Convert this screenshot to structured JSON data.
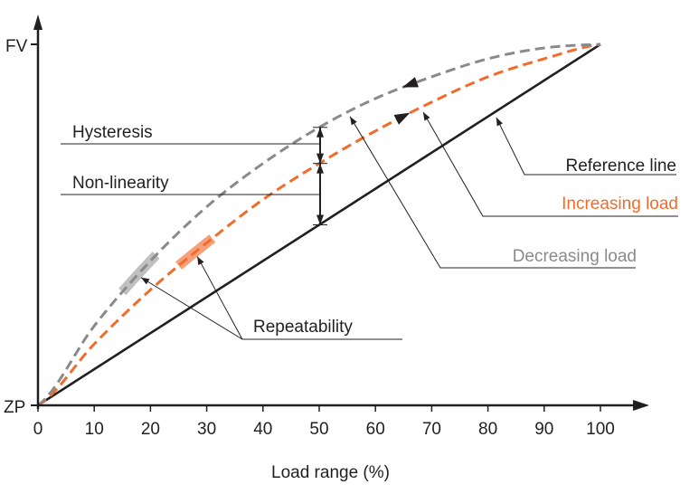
{
  "chart_data": {
    "type": "line",
    "title": "",
    "xlabel": "Load range (%)",
    "ylabel": "",
    "xlim": [
      0,
      100
    ],
    "ylim": [
      0,
      100
    ],
    "x_ticks": [
      0,
      10,
      20,
      30,
      40,
      50,
      60,
      70,
      80,
      90,
      100
    ],
    "y_tick_labels": [
      {
        "value": 0,
        "label": "ZP"
      },
      {
        "value": 100,
        "label": "FV"
      }
    ],
    "grid": false,
    "series": [
      {
        "name": "Reference line",
        "color": "#231f20",
        "style": "solid",
        "x": [
          0,
          100
        ],
        "y": [
          0,
          100
        ]
      },
      {
        "name": "Increasing load",
        "color": "#f26b2a",
        "style": "dashed",
        "x": [
          0,
          10,
          20,
          30,
          40,
          50,
          60,
          70,
          80,
          90,
          100
        ],
        "y": [
          0,
          17,
          32,
          45,
          57,
          67,
          76,
          84,
          91,
          96,
          100
        ]
      },
      {
        "name": "Decreasing load",
        "color": "#8a8a8a",
        "style": "dashed",
        "x": [
          0,
          10,
          20,
          30,
          40,
          50,
          60,
          70,
          80,
          90,
          100
        ],
        "y": [
          0,
          22,
          40,
          55,
          67,
          77,
          85,
          91,
          96,
          99,
          100
        ]
      }
    ],
    "annotations": [
      {
        "text": "Hysteresis",
        "type": "dimension",
        "at_x": 50,
        "from_series": "Increasing load",
        "to_series": "Decreasing load"
      },
      {
        "text": "Non-linearity",
        "type": "dimension",
        "at_x": 50,
        "from_series": "Reference line",
        "to_series": "Increasing load"
      },
      {
        "text": "Repeatability",
        "type": "callout",
        "targets": [
          {
            "series": "Decreasing load",
            "x": 18
          },
          {
            "series": "Increasing load",
            "x": 28
          }
        ]
      },
      {
        "text": "Reference line",
        "type": "callout",
        "color": "#231f20",
        "target": {
          "series": "Reference line",
          "x": 81
        }
      },
      {
        "text": "Increasing load",
        "type": "callout",
        "color": "#f26b2a",
        "target": {
          "series": "Increasing load",
          "x": 68
        }
      },
      {
        "text": "Decreasing load",
        "type": "callout",
        "color": "#8a8a8a",
        "target": {
          "series": "Decreasing load",
          "x": 55
        }
      }
    ],
    "direction_arrows": [
      {
        "series": "Increasing load",
        "x": 65,
        "direction": "right"
      },
      {
        "series": "Decreasing load",
        "x": 66,
        "direction": "left"
      }
    ],
    "repeatability_bands": [
      {
        "series": "Decreasing load",
        "x_from": 15,
        "x_to": 21,
        "color": "#c0c0c0"
      },
      {
        "series": "Increasing load",
        "x_from": 25,
        "x_to": 31,
        "color": "#f5a07a"
      }
    ]
  }
}
